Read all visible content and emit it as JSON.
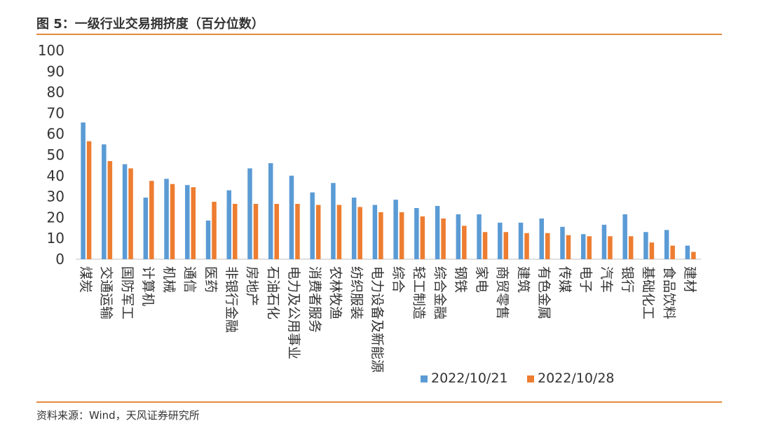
{
  "title": "图 5：一级行业交易拥挤度（百分位数）",
  "source": "资料来源：Wind，天风证券研究所",
  "colors": {
    "series1": "#5b9bd5",
    "series2": "#ed7d31",
    "rule": "#e38b3e"
  },
  "chart_data": {
    "type": "bar",
    "title": "",
    "xlabel": "",
    "ylabel": "",
    "ylim": [
      0,
      100
    ],
    "yticks": [
      0,
      10,
      20,
      30,
      40,
      50,
      60,
      70,
      80,
      90,
      100
    ],
    "grid": false,
    "legend_position": "bottom-right",
    "categories": [
      "煤炭",
      "交通运输",
      "国防军工",
      "计算机",
      "机械",
      "通信",
      "医药",
      "非银行金融",
      "房地产",
      "石油石化",
      "电力及公用事业",
      "消费者服务",
      "农林牧渔",
      "纺织服装",
      "电力设备及新能源",
      "综合",
      "轻工制造",
      "综合金融",
      "钢铁",
      "家电",
      "商贸零售",
      "建筑",
      "有色金属",
      "传媒",
      "电子",
      "汽车",
      "银行",
      "基础化工",
      "食品饮料",
      "建材"
    ],
    "series": [
      {
        "name": "2022/10/21",
        "values": [
          65.5,
          55,
          45.5,
          29.5,
          38.5,
          35.5,
          18.5,
          33,
          43.5,
          46,
          40,
          32,
          36.5,
          29.5,
          26,
          28.5,
          24.5,
          25.5,
          21.5,
          21.5,
          17.5,
          17.5,
          19.5,
          15.5,
          12,
          16.5,
          21.5,
          13,
          14,
          6.5
        ]
      },
      {
        "name": "2022/10/28",
        "values": [
          56.5,
          47,
          43.5,
          37.5,
          36,
          34.5,
          27.5,
          26.5,
          26.5,
          26.5,
          26.5,
          26,
          26,
          25,
          22.5,
          22.5,
          20.5,
          19.5,
          16,
          13,
          13,
          12.5,
          12.5,
          11.5,
          11,
          11,
          11,
          8,
          6.5,
          3.5
        ]
      }
    ]
  }
}
